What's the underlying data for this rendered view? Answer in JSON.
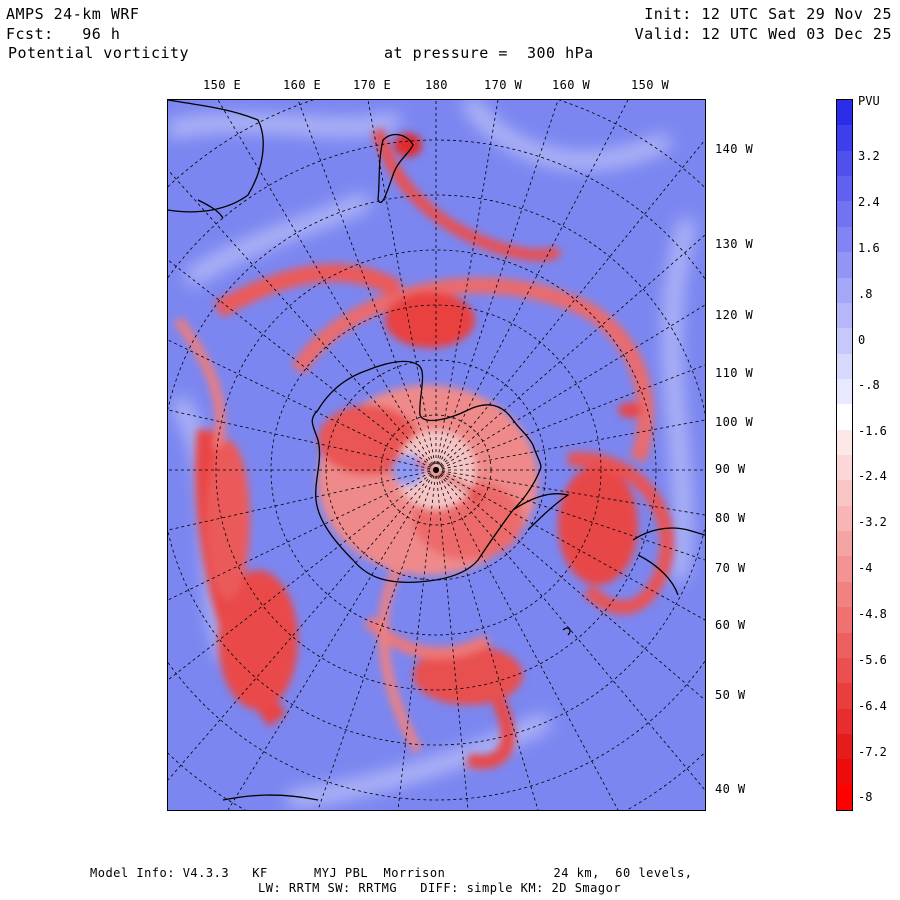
{
  "header": {
    "model": "AMPS 24-km WRF",
    "forecast": "Fcst:   96 h",
    "field": "Potential vorticity",
    "pressure": "at pressure =  300 hPa",
    "init": "Init: 12 UTC Sat 29 Nov 25",
    "valid": "Valid: 12 UTC Wed 03 Dec 25"
  },
  "map": {
    "top_longitude_labels": [
      "150 E",
      "160 E",
      "170 E",
      "180",
      "170 W",
      "160 W",
      "150 W"
    ],
    "right_longitude_labels": [
      "140 W",
      "130 W",
      "120 W",
      "110 W",
      "100 W",
      "90 W",
      "80 W",
      "70 W",
      "60 W",
      "50 W",
      "40 W"
    ],
    "background_color": "#7b86f0",
    "positive_color": "#e93a3a"
  },
  "colorbar": {
    "unit": "PVU",
    "tick_labels": [
      "3.2",
      "2.4",
      "1.6",
      ".8",
      "0",
      "-.8",
      "-1.6",
      "-2.4",
      "-3.2",
      "-4",
      "-4.8",
      "-5.6",
      "-6.4",
      "-7.2",
      "-8"
    ],
    "colors": [
      "#2b2bea",
      "#3d3eec",
      "#4f50ee",
      "#6061f0",
      "#7173f2",
      "#8284f4",
      "#9395f5",
      "#a4a6f7",
      "#b5b7f9",
      "#c6c8fb",
      "#d7d9fc",
      "#e8e9fe",
      "#ffffff",
      "#fde8e8",
      "#fbd7d7",
      "#f9c6c6",
      "#f7b5b5",
      "#f5a4a4",
      "#f39393",
      "#f18282",
      "#ef7171",
      "#ed6060",
      "#eb4f4f",
      "#e93e3e",
      "#e72d2d",
      "#e51c1c",
      "#ee0b0b",
      "#ff0000"
    ]
  },
  "footer": {
    "line1": "Model Info: V4.3.3   KF      MYJ PBL  Morrison              24 km,  60 levels,",
    "line2": "LW: RRTM SW: RRTMG   DIFF: simple KM: 2D Smagor"
  }
}
